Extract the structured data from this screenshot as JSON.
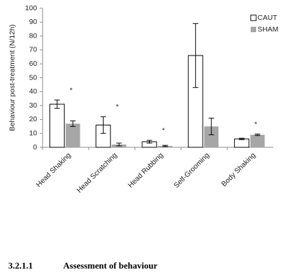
{
  "chart_data": {
    "type": "bar",
    "ylabel": "Behaviour post-treatment (N/12h)",
    "categories": [
      "Head Shaking",
      "Head Scratching",
      "Head Rubbing",
      "Self-Grooming",
      "Body Shaking"
    ],
    "series": [
      {
        "name": "CAUT",
        "color": "#ffffff",
        "values": [
          31,
          16,
          4,
          66,
          6
        ],
        "errors": [
          3,
          6,
          1,
          23,
          0.5
        ]
      },
      {
        "name": "SHAM",
        "color": "#a6a6a6",
        "values": [
          17,
          2,
          1,
          15,
          9
        ],
        "errors": [
          2,
          1,
          0.4,
          6,
          0.5
        ]
      }
    ],
    "annotations": [
      "*",
      "*",
      "*",
      null,
      "*"
    ],
    "ylim": [
      0,
      100
    ],
    "yticks": [
      0,
      10,
      20,
      30,
      40,
      50,
      60,
      70,
      80,
      90,
      100
    ],
    "legend": "upper right"
  },
  "document": {
    "section_number": "3.2.1.1",
    "section_title": "Assessment of behaviour"
  }
}
